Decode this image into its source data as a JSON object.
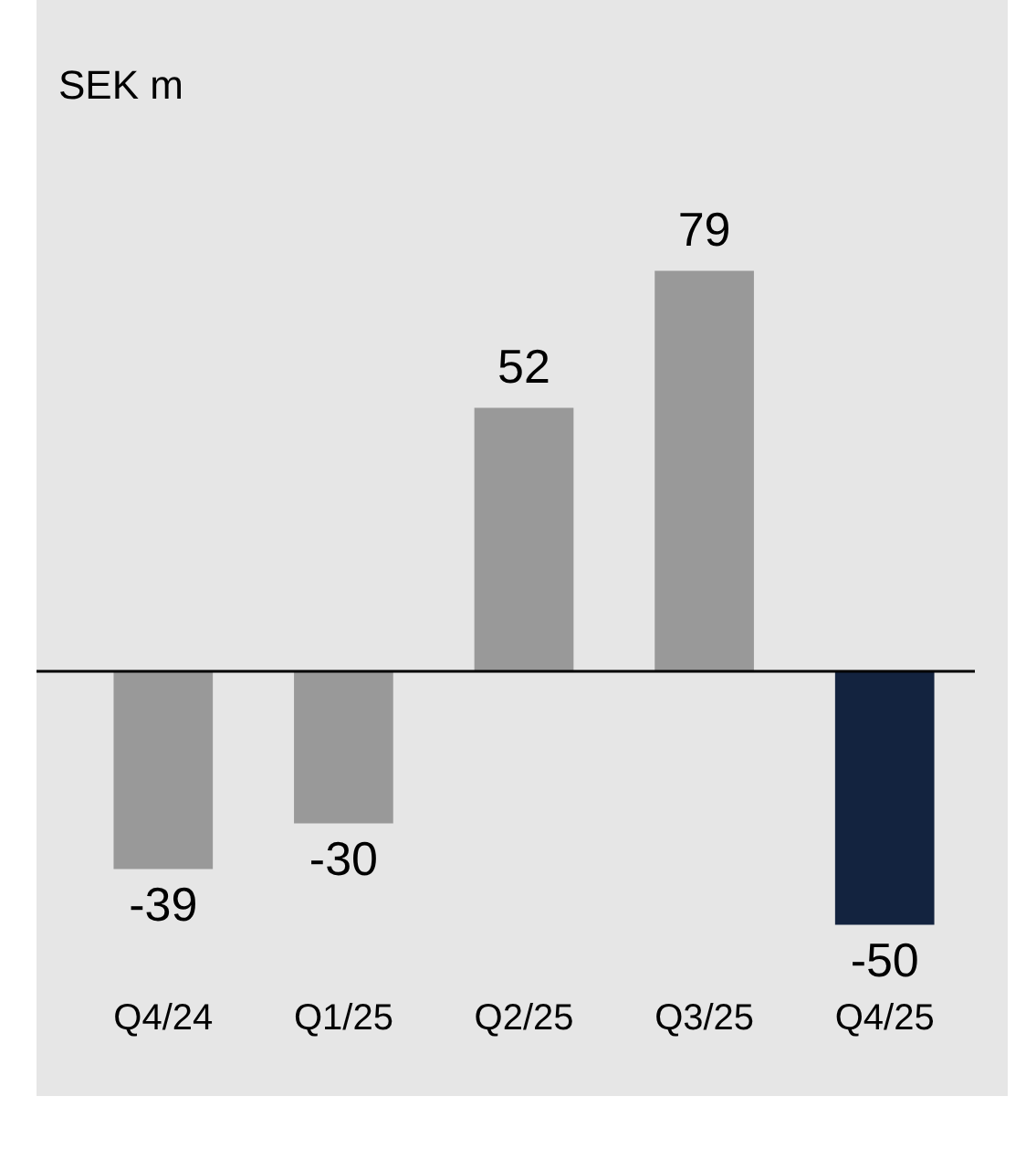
{
  "chart_data": {
    "type": "bar",
    "title": "SEK m",
    "categories": [
      "Q4/24",
      "Q1/25",
      "Q2/25",
      "Q3/25",
      "Q4/25"
    ],
    "values": [
      -39,
      -30,
      52,
      79,
      -50
    ],
    "colors": [
      "#999999",
      "#999999",
      "#999999",
      "#999999",
      "#13233f"
    ],
    "data_labels": true,
    "grid": false,
    "legend": false
  }
}
